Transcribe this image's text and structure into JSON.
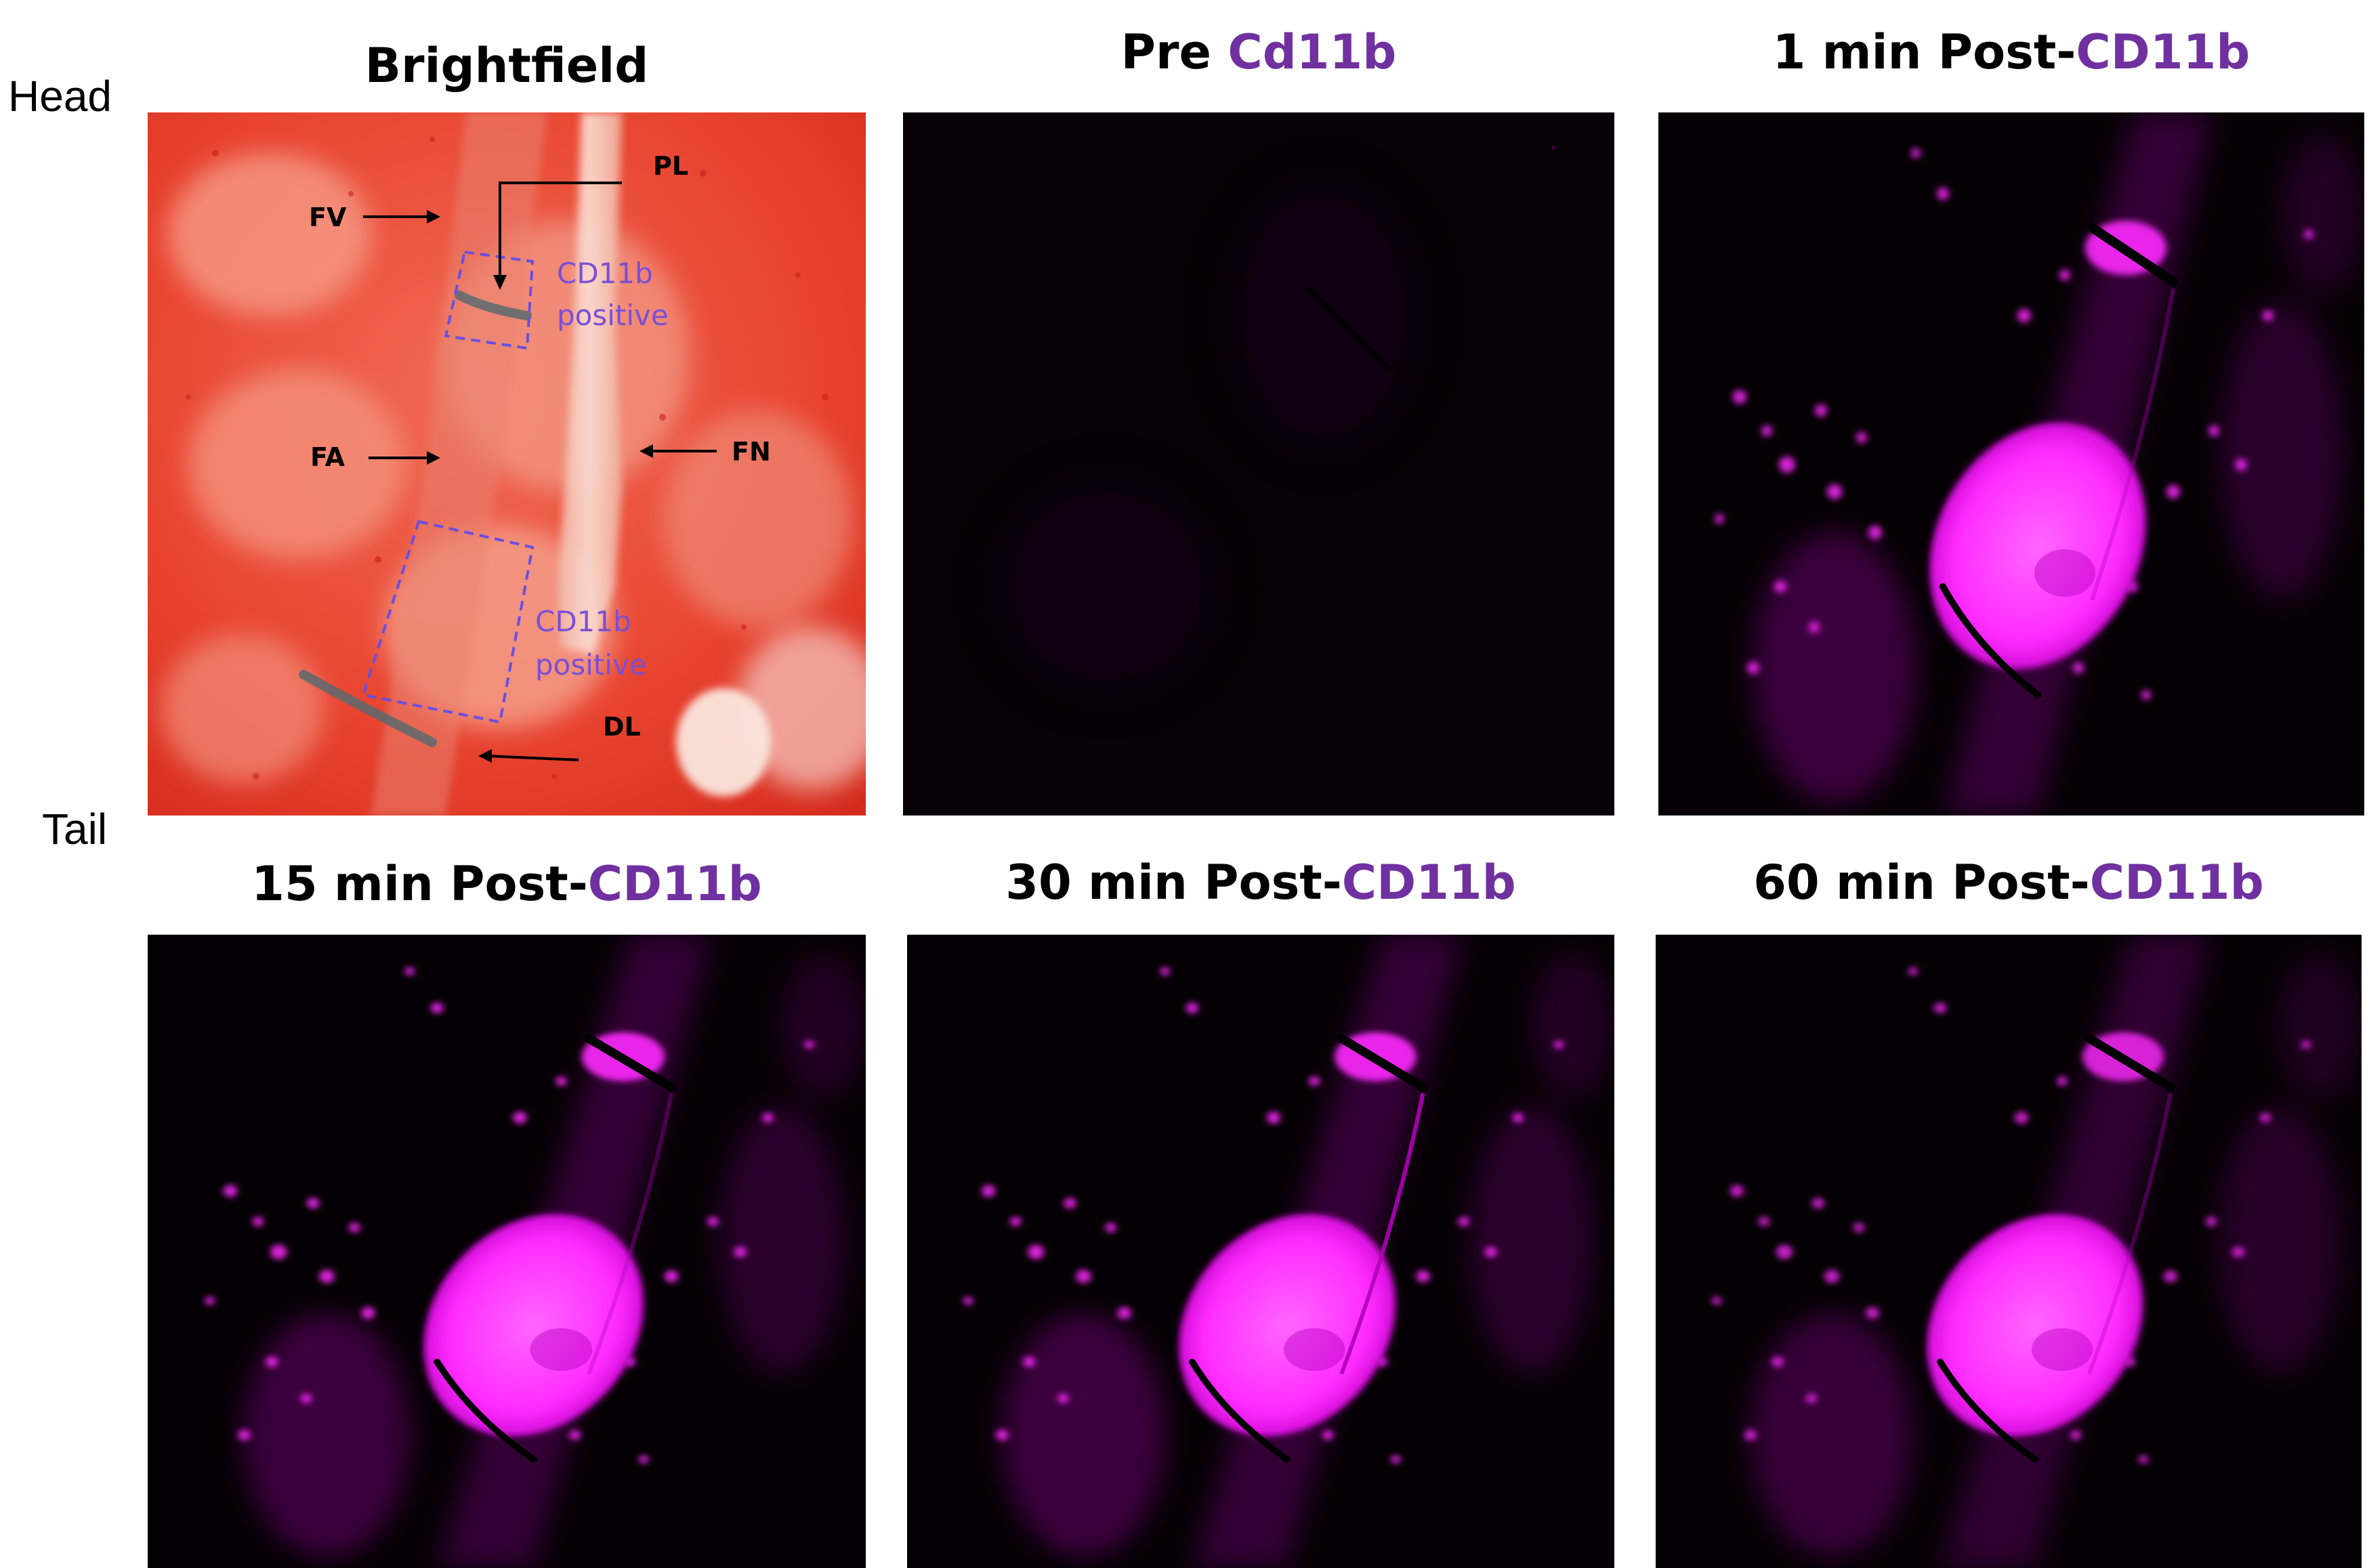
{
  "orientation": {
    "head": "Head",
    "tail": "Tail"
  },
  "panels": [
    {
      "id": "brightfield",
      "title_prefix": "Brightfield",
      "title_accent": ""
    },
    {
      "id": "pre",
      "title_prefix": "Pre ",
      "title_accent": "Cd11b"
    },
    {
      "id": "post1",
      "title_prefix": "1 min Post-",
      "title_accent": "CD11b"
    },
    {
      "id": "post15",
      "title_prefix": "15 min Post-",
      "title_accent": "CD11b"
    },
    {
      "id": "post30",
      "title_prefix": "30 min Post-",
      "title_accent": "CD11b"
    },
    {
      "id": "post60",
      "title_prefix": "60 min Post-",
      "title_accent": "CD11b"
    }
  ],
  "brightfield_labels": {
    "fv": "FV",
    "pl": "PL",
    "fa": "FA",
    "fn": "FN",
    "dl": "DL",
    "roi1_line1": "CD11b",
    "roi1_line2": "positive",
    "roi2_line1": "CD11b",
    "roi2_line2": "positive"
  },
  "colors": {
    "accent": "#7030a0",
    "fluorescence": "#ff2bff",
    "brightfield_tissue": "#e8402e",
    "roi_box": "#6a4fe0"
  }
}
